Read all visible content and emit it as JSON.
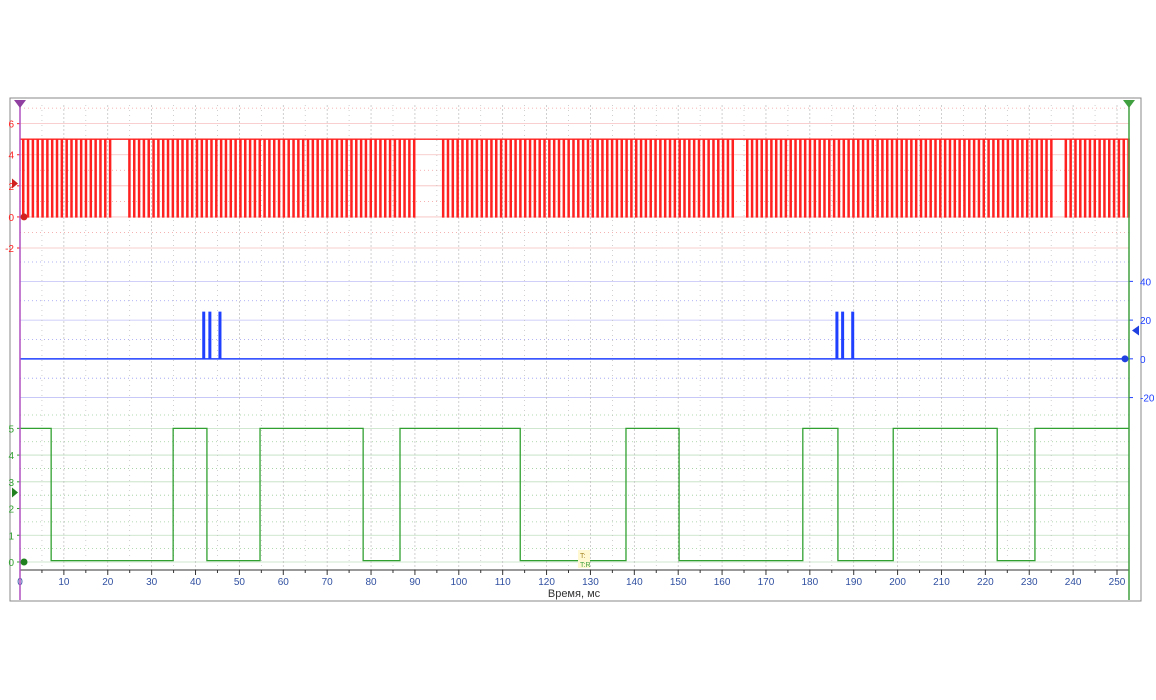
{
  "chart_data": {
    "type": "line",
    "xlabel": "Время, мс",
    "xlim": [
      0,
      252.7
    ],
    "x_ticks": [
      0,
      10,
      20,
      30,
      40,
      50,
      60,
      70,
      80,
      90,
      100,
      110,
      120,
      130,
      140,
      150,
      160,
      170,
      180,
      190,
      200,
      210,
      220,
      230,
      240,
      250
    ],
    "grid": true,
    "trigger_label_top": "T:",
    "trigger_label_bottom": "T:R",
    "channels": [
      {
        "color": "#ff2020",
        "axis_side": "left",
        "ylim": [
          -2.9,
          7.2
        ],
        "y_ticks": [
          -2,
          0,
          2,
          4,
          6
        ],
        "high": 5,
        "low": 0,
        "pulse_period_ms": 1.1,
        "gaps_ms": [
          [
            21,
            24
          ],
          [
            90.7,
            95.7
          ],
          [
            163,
            165
          ],
          [
            235,
            238
          ]
        ]
      },
      {
        "color": "#2040ff",
        "axis_side": "right",
        "ylim": [
          -29,
          50
        ],
        "y_ticks": [
          -20,
          0,
          20,
          40
        ],
        "baseline": 0,
        "spikes_ms": [
          41.7,
          43.1,
          45.4,
          186.0,
          187.3,
          189.6
        ],
        "spike_value": 24
      },
      {
        "color": "#30a030",
        "axis_side": "left",
        "ylim": [
          -0.3,
          5.5
        ],
        "y_ticks": [
          0,
          1,
          2,
          3,
          4,
          5
        ],
        "high": 5,
        "low": 0.05,
        "initial": "high",
        "transitions_ms": [
          7.1,
          34.9,
          42.6,
          54.7,
          78.2,
          86.6,
          114.0,
          138.1,
          150.2,
          178.4,
          186.4,
          199.0,
          222.7,
          231.3
        ]
      }
    ]
  }
}
